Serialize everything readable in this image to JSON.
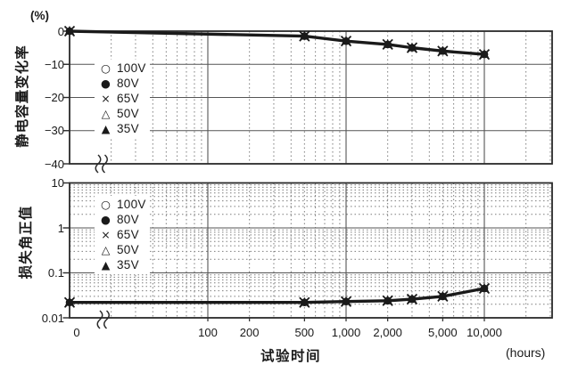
{
  "figure": {
    "x_axis": {
      "label": "试验时间",
      "unit": "(hours)",
      "tick_labels": [
        "0",
        "100",
        "200",
        "500",
        "1,000",
        "2,000",
        "5,000",
        "10,000"
      ],
      "tick_values": [
        0,
        100,
        200,
        500,
        1000,
        2000,
        5000,
        10000
      ],
      "scale": "log-with-zero-break",
      "log_range": [
        10,
        30000
      ]
    },
    "legend": {
      "items": [
        {
          "symbol": "○",
          "marker": "circle-open",
          "label": "100V"
        },
        {
          "symbol": "●",
          "marker": "circle-filled",
          "label": "80V"
        },
        {
          "symbol": "×",
          "marker": "x-cross",
          "label": "65V"
        },
        {
          "symbol": "△",
          "marker": "triangle-open",
          "label": "50V"
        },
        {
          "symbol": "▲",
          "marker": "triangle-filled",
          "label": "35V"
        }
      ]
    },
    "colors": {
      "curve": "#1a1a1a",
      "frame": "#2a2a2a",
      "grid_major": "#555555",
      "grid_minor": "#7d7d7d",
      "text": "#1a1a1a",
      "background": "#ffffff"
    }
  },
  "chart_data": [
    {
      "type": "line",
      "ylabel": "静电容量变化率",
      "y_unit": "(%)",
      "yscale": "linear",
      "ylim": [
        -40,
        0
      ],
      "ytick_labels": [
        "0",
        "−10",
        "−20",
        "−30",
        "−40"
      ],
      "ytick_values": [
        0,
        -10,
        -20,
        -30,
        -40
      ],
      "xscale": "log-with-zero-break",
      "x": [
        0,
        500,
        1000,
        2000,
        3000,
        5000,
        10000
      ],
      "series_names": [
        "100V",
        "80V",
        "65V",
        "50V",
        "35V"
      ],
      "values_shared_by_all_series": true,
      "values": [
        0,
        -1.5,
        -3,
        -4,
        -5,
        -6,
        -7
      ],
      "grid": "log minor dotted vertical; solid horizontal at -10,-20,-30; solid vertical at 100,1000,10000"
    },
    {
      "type": "line",
      "ylabel": "损失角正值",
      "yscale": "log",
      "ylim": [
        0.01,
        10
      ],
      "ytick_labels": [
        "10",
        "1",
        "0.1",
        "0.01"
      ],
      "ytick_values": [
        10,
        1,
        0.1,
        0.01
      ],
      "xscale": "log-with-zero-break",
      "x": [
        0,
        500,
        1000,
        2000,
        3000,
        5000,
        10000
      ],
      "series_names": [
        "100V",
        "80V",
        "65V",
        "50V",
        "35V"
      ],
      "values_shared_by_all_series": true,
      "values": [
        0.022,
        0.022,
        0.023,
        0.024,
        0.026,
        0.03,
        0.045
      ],
      "grid": "log minor dotted both axes; solid horizontal at 1,0.1; solid vertical at 100,1000,10000"
    }
  ]
}
